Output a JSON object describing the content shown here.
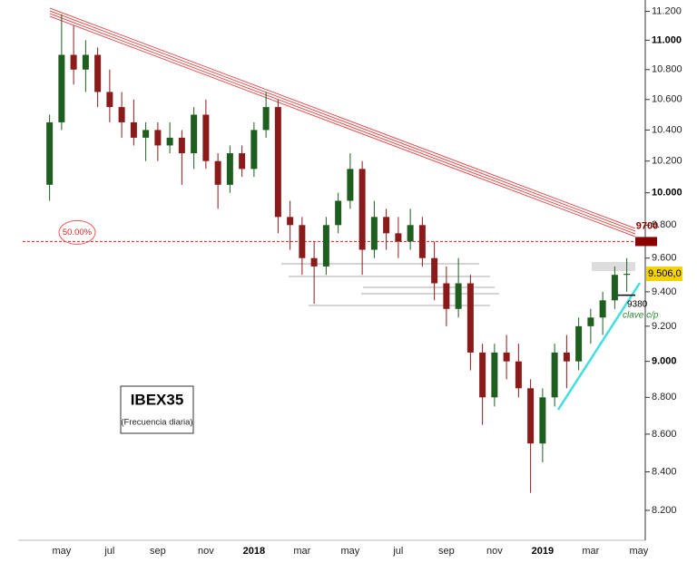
{
  "chart_data": {
    "type": "candlestick",
    "title": "IBEX35",
    "subtitle": "(Frecuencia diaria)",
    "categories": [
      null,
      "may",
      null,
      null,
      null,
      "jul",
      null,
      null,
      null,
      "sep",
      null,
      null,
      null,
      "nov",
      null,
      null,
      null,
      "2018",
      null,
      null,
      null,
      "mar",
      null,
      null,
      null,
      "may",
      null,
      null,
      null,
      "jul",
      null,
      null,
      null,
      "sep",
      null,
      null,
      null,
      "nov",
      null,
      null,
      null,
      "2019",
      null,
      null,
      null,
      "mar",
      null,
      null,
      null,
      "may"
    ],
    "open": [
      10050,
      10450,
      10900,
      10800,
      10900,
      10650,
      10550,
      10450,
      10350,
      10400,
      10300,
      10350,
      10250,
      10500,
      10200,
      10050,
      10250,
      10150,
      10400,
      10550,
      9850,
      9800,
      9600,
      9550,
      9800,
      9950,
      10150,
      9650,
      9850,
      9750,
      9700,
      9800,
      9600,
      9450,
      9300,
      9450,
      9050,
      8800,
      9050,
      9000,
      8850,
      8550,
      8800,
      9050,
      9000,
      9200,
      9250,
      9350,
      9500,
      null
    ],
    "high": [
      10500,
      11180,
      11100,
      11000,
      10950,
      10800,
      10650,
      10600,
      10450,
      10450,
      10450,
      10400,
      10550,
      10600,
      10250,
      10300,
      10300,
      10450,
      10650,
      10600,
      9950,
      9850,
      9700,
      9850,
      10000,
      10250,
      10200,
      9950,
      9900,
      9850,
      9900,
      9850,
      9700,
      9550,
      9600,
      9500,
      9100,
      9100,
      9150,
      9100,
      8900,
      8850,
      9100,
      9150,
      9250,
      9300,
      9400,
      9550,
      9600,
      null
    ],
    "low": [
      9950,
      10400,
      10700,
      10650,
      10550,
      10450,
      10350,
      10300,
      10200,
      10200,
      10250,
      10050,
      10150,
      10150,
      9900,
      10000,
      10100,
      10100,
      10350,
      9750,
      9650,
      9500,
      9330,
      9500,
      9750,
      9900,
      9500,
      9600,
      9650,
      9600,
      9650,
      9550,
      9350,
      9200,
      9250,
      8950,
      8650,
      8750,
      8900,
      8800,
      8290,
      8450,
      8750,
      8850,
      8950,
      9100,
      9150,
      9300,
      9400,
      null
    ],
    "close": [
      10450,
      10900,
      10800,
      10900,
      10650,
      10550,
      10450,
      10350,
      10400,
      10300,
      10350,
      10250,
      10500,
      10200,
      10050,
      10250,
      10150,
      10400,
      10550,
      9850,
      9800,
      9600,
      9550,
      9800,
      9950,
      10150,
      9650,
      9850,
      9750,
      9700,
      9800,
      9600,
      9450,
      9300,
      9450,
      9050,
      8800,
      9050,
      9000,
      8850,
      8550,
      8800,
      9050,
      9000,
      9200,
      9250,
      9350,
      9500,
      9506,
      null
    ],
    "up_color": "#1e5e1e",
    "down_color": "#8b1a1a",
    "log_scale": true,
    "ylim": [
      8030,
      11280
    ],
    "yticks": [
      {
        "value": 8200,
        "label": "8.200"
      },
      {
        "value": 8400,
        "label": "8.400"
      },
      {
        "value": 8600,
        "label": "8.600"
      },
      {
        "value": 8800,
        "label": "8.800"
      },
      {
        "value": 9000,
        "label": "9.000"
      },
      {
        "value": 9200,
        "label": "9.200"
      },
      {
        "value": 9400,
        "label": "9.400"
      },
      {
        "value": 9600,
        "label": "9.600"
      },
      {
        "value": 9800,
        "label": "9.800"
      },
      {
        "value": 10000,
        "label": "10.000"
      },
      {
        "value": 10200,
        "label": "10.200"
      },
      {
        "value": 10400,
        "label": "10.400"
      },
      {
        "value": 10600,
        "label": "10.600"
      },
      {
        "value": 10800,
        "label": "10.800"
      },
      {
        "value": 11000,
        "label": "11.000"
      },
      {
        "value": 11200,
        "label": "11.200"
      }
    ],
    "annotations": {
      "retracement": {
        "value": 9700,
        "label": "50.00%",
        "axis_label": "9700"
      },
      "last_price": {
        "value": 9506,
        "label": "9.506,0"
      },
      "key_level": {
        "value": 9380,
        "label": "9380",
        "note": "clave c/p"
      }
    }
  }
}
